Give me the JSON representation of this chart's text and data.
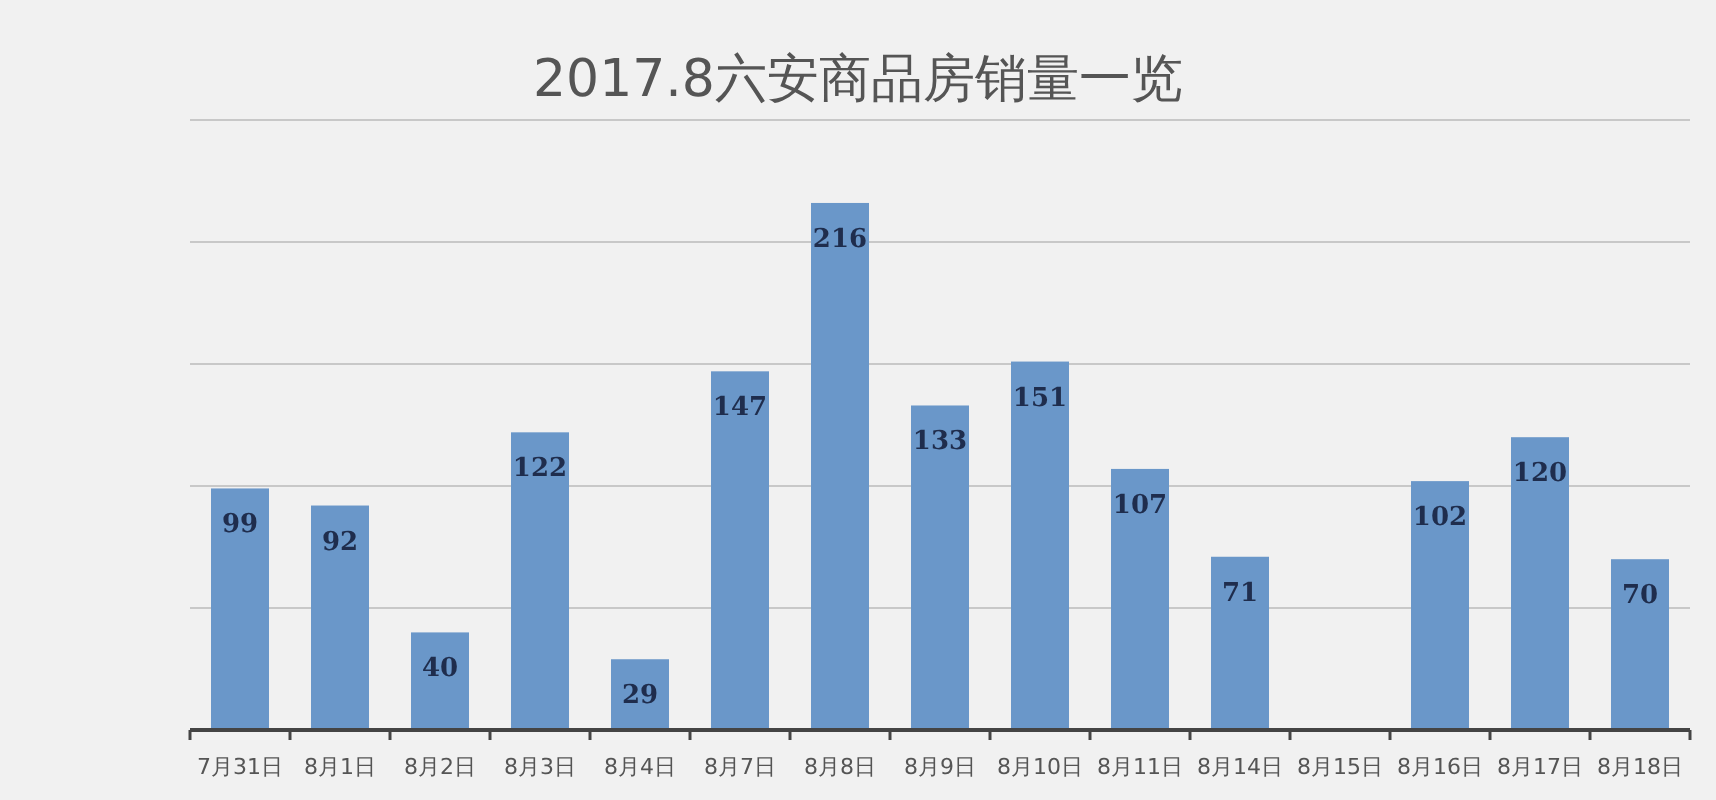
{
  "chart_data": {
    "type": "bar",
    "title": "2017.8六安商品房销量一览",
    "categories": [
      "7月31日",
      "8月1日",
      "8月2日",
      "8月3日",
      "8月4日",
      "8月7日",
      "8月8日",
      "8月9日",
      "8月10日",
      "8月11日",
      "8月14日",
      "8月15日",
      "8月16日",
      "8月17日",
      "8月18日"
    ],
    "values": [
      99,
      92,
      40,
      122,
      29,
      147,
      216,
      133,
      151,
      107,
      71,
      null,
      102,
      120,
      70
    ],
    "color": "#6a97c9",
    "data_labels": true,
    "ylim": [
      0,
      250
    ],
    "yticks": [
      {
        "value": 0,
        "label": null
      },
      {
        "value": 50,
        "label": null
      },
      {
        "value": 100,
        "label": null
      },
      {
        "value": 150,
        "label": null
      },
      {
        "value": 200,
        "label": null
      },
      {
        "value": 250,
        "label": null
      }
    ],
    "tick_labels": "x",
    "grid": "y"
  }
}
